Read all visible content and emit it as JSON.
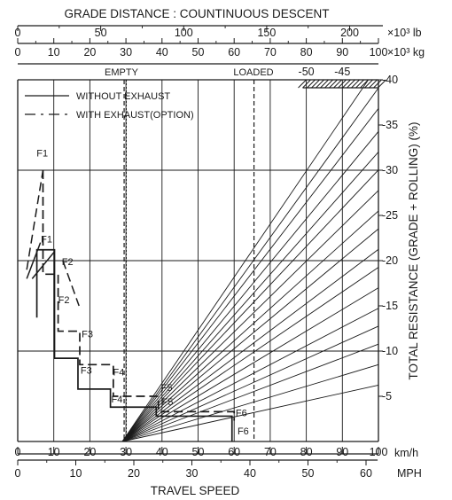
{
  "chart_data": {
    "type": "line",
    "title": "GRADE DISTANCE : COUNTINUOUS DESCENT",
    "xlabel": "TRAVEL SPEED",
    "ylabel": "TOTAL RESISTANCE (GRADE + ROLLING)  (%)",
    "xlim": [
      0,
      100
    ],
    "ylim": [
      0,
      40
    ],
    "grid": true,
    "legend": "top-left",
    "axes": {
      "x_kmh": {
        "unit": "km/h",
        "ticks": [
          0,
          10,
          20,
          30,
          40,
          50,
          60,
          70,
          80,
          90,
          100
        ]
      },
      "x_mph": {
        "unit": "MPH",
        "ticks": [
          0,
          10,
          20,
          30,
          40,
          50,
          60
        ]
      },
      "weight_lb": {
        "unit": "×10³ lb",
        "ticks": [
          0,
          50,
          100,
          150,
          200
        ],
        "max": 220
      },
      "weight_kg": {
        "unit": "×10³ kg",
        "ticks": [
          0,
          10,
          20,
          30,
          40,
          50,
          60,
          70,
          80,
          90,
          100
        ]
      },
      "y_right": {
        "ticks": [
          "-5",
          "-10",
          "-15",
          "-20",
          "-25",
          "-30",
          "-35",
          "-40"
        ],
        "values": [
          5,
          10,
          15,
          20,
          25,
          30,
          35,
          40
        ]
      },
      "grade_labels": [
        {
          "text": "-50",
          "weight": 80
        },
        {
          "text": "-45",
          "weight": 90
        }
      ]
    },
    "markers": [
      {
        "name": "EMPTY",
        "weight": 29.5
      },
      {
        "name": "LOADED",
        "weight": 65.5
      }
    ],
    "resistance_lines": {
      "slopes": [
        0.22,
        0.3,
        0.38,
        0.45,
        0.52,
        0.6,
        0.68,
        0.75,
        0.83,
        0.9,
        0.98,
        1.06,
        1.13,
        1.21,
        1.3,
        1.38,
        1.47
      ],
      "start_weight": 29
    },
    "series": [
      {
        "name": "WITHOUT EXHAUST",
        "style": "solid",
        "points": [
          [
            5.3,
            13.7
          ],
          [
            5.3,
            21.2
          ],
          [
            10.2,
            21.2
          ],
          [
            10.2,
            13.7
          ],
          [
            10.2,
            12.0
          ],
          [
            10.2,
            9.2
          ],
          [
            16.7,
            9.2
          ],
          [
            16.7,
            5.8
          ],
          [
            25.7,
            5.8
          ],
          [
            25.7,
            3.8
          ],
          [
            38.4,
            3.8
          ],
          [
            38.4,
            2.8
          ],
          [
            59.4,
            2.8
          ],
          [
            59.4,
            0
          ]
        ],
        "extras": [
          [
            [
              2.5,
              18.0
            ],
            [
              6.3,
              22.0
            ]
          ],
          [
            [
              4.0,
              18.0
            ],
            [
              10.2,
              21.0
            ]
          ]
        ]
      },
      {
        "name": "WITH EXHAUST(OPTION)",
        "style": "dashed",
        "points": [
          [
            7.0,
            30.0
          ],
          [
            7.0,
            18.5
          ],
          [
            11.2,
            18.5
          ],
          [
            11.2,
            12.2
          ],
          [
            17.2,
            12.2
          ],
          [
            17.2,
            8.5
          ],
          [
            26.5,
            8.5
          ],
          [
            26.5,
            5.0
          ],
          [
            39.0,
            5.0
          ],
          [
            39.0,
            3.3
          ],
          [
            60.0,
            3.3
          ],
          [
            60.0,
            2.3
          ]
        ],
        "extras": [
          [
            [
              2.5,
              19.0
            ],
            [
              7.0,
              30.0
            ]
          ],
          [
            [
              12.5,
              20.0
            ],
            [
              17.0,
              15.0
            ]
          ]
        ]
      }
    ],
    "gear_labels": [
      {
        "text": "F1",
        "x": 6.8,
        "y": 31.5
      },
      {
        "text": "F1",
        "x": 8.0,
        "y": 22.0
      },
      {
        "text": "F2",
        "x": 13.8,
        "y": 19.5
      },
      {
        "text": "F2",
        "x": 12.8,
        "y": 15.3
      },
      {
        "text": "F3",
        "x": 19.3,
        "y": 11.5
      },
      {
        "text": "F3",
        "x": 19.0,
        "y": 7.5
      },
      {
        "text": "F4",
        "x": 28.0,
        "y": 7.3
      },
      {
        "text": "F4",
        "x": 27.5,
        "y": 4.3
      },
      {
        "text": "F5",
        "x": 41.3,
        "y": 5.6
      },
      {
        "text": "F5",
        "x": 41.5,
        "y": 4.0
      },
      {
        "text": "F6",
        "x": 62.0,
        "y": 2.8
      },
      {
        "text": "F6",
        "x": 62.5,
        "y": 0.8
      }
    ]
  },
  "labels": {
    "empty": "EMPTY",
    "loaded": "LOADED"
  },
  "colors": {
    "ink": "#1a1a1a",
    "background": "#ffffff"
  }
}
